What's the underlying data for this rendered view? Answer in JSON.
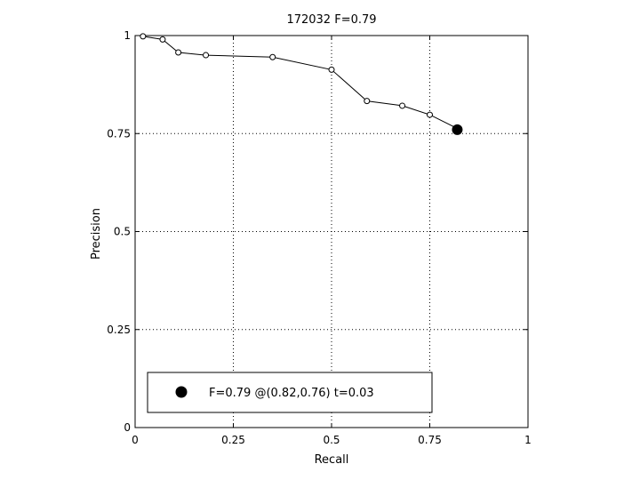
{
  "chart_data": {
    "type": "line",
    "title": "172032 F=0.79",
    "xlabel": "Recall",
    "ylabel": "Precision",
    "xlim": [
      0,
      1
    ],
    "ylim": [
      0,
      1
    ],
    "xticks": [
      0,
      0.25,
      0.5,
      0.75,
      1
    ],
    "xtick_labels": [
      "0",
      "0.25",
      "0.5",
      "0.75",
      "1"
    ],
    "yticks": [
      0,
      0.25,
      0.5,
      0.75,
      1
    ],
    "ytick_labels": [
      "0",
      "0.25",
      "0.5",
      "0.75",
      "1"
    ],
    "grid": true,
    "legend_position": "bottom-left",
    "series": [
      {
        "x": [
          0.02,
          0.07,
          0.11,
          0.18,
          0.35,
          0.5,
          0.59,
          0.68,
          0.75,
          0.82
        ],
        "y": [
          0.998,
          0.99,
          0.957,
          0.95,
          0.945,
          0.913,
          0.833,
          0.821,
          0.798,
          0.763
        ],
        "marker": "open-circle"
      }
    ],
    "best_point": {
      "x": 0.82,
      "y": 0.76,
      "marker": "filled-circle",
      "label": "F=0.79 @(0.82,0.76) t=0.03"
    },
    "colors": {
      "line": "#000000",
      "background": "#ffffff"
    }
  }
}
